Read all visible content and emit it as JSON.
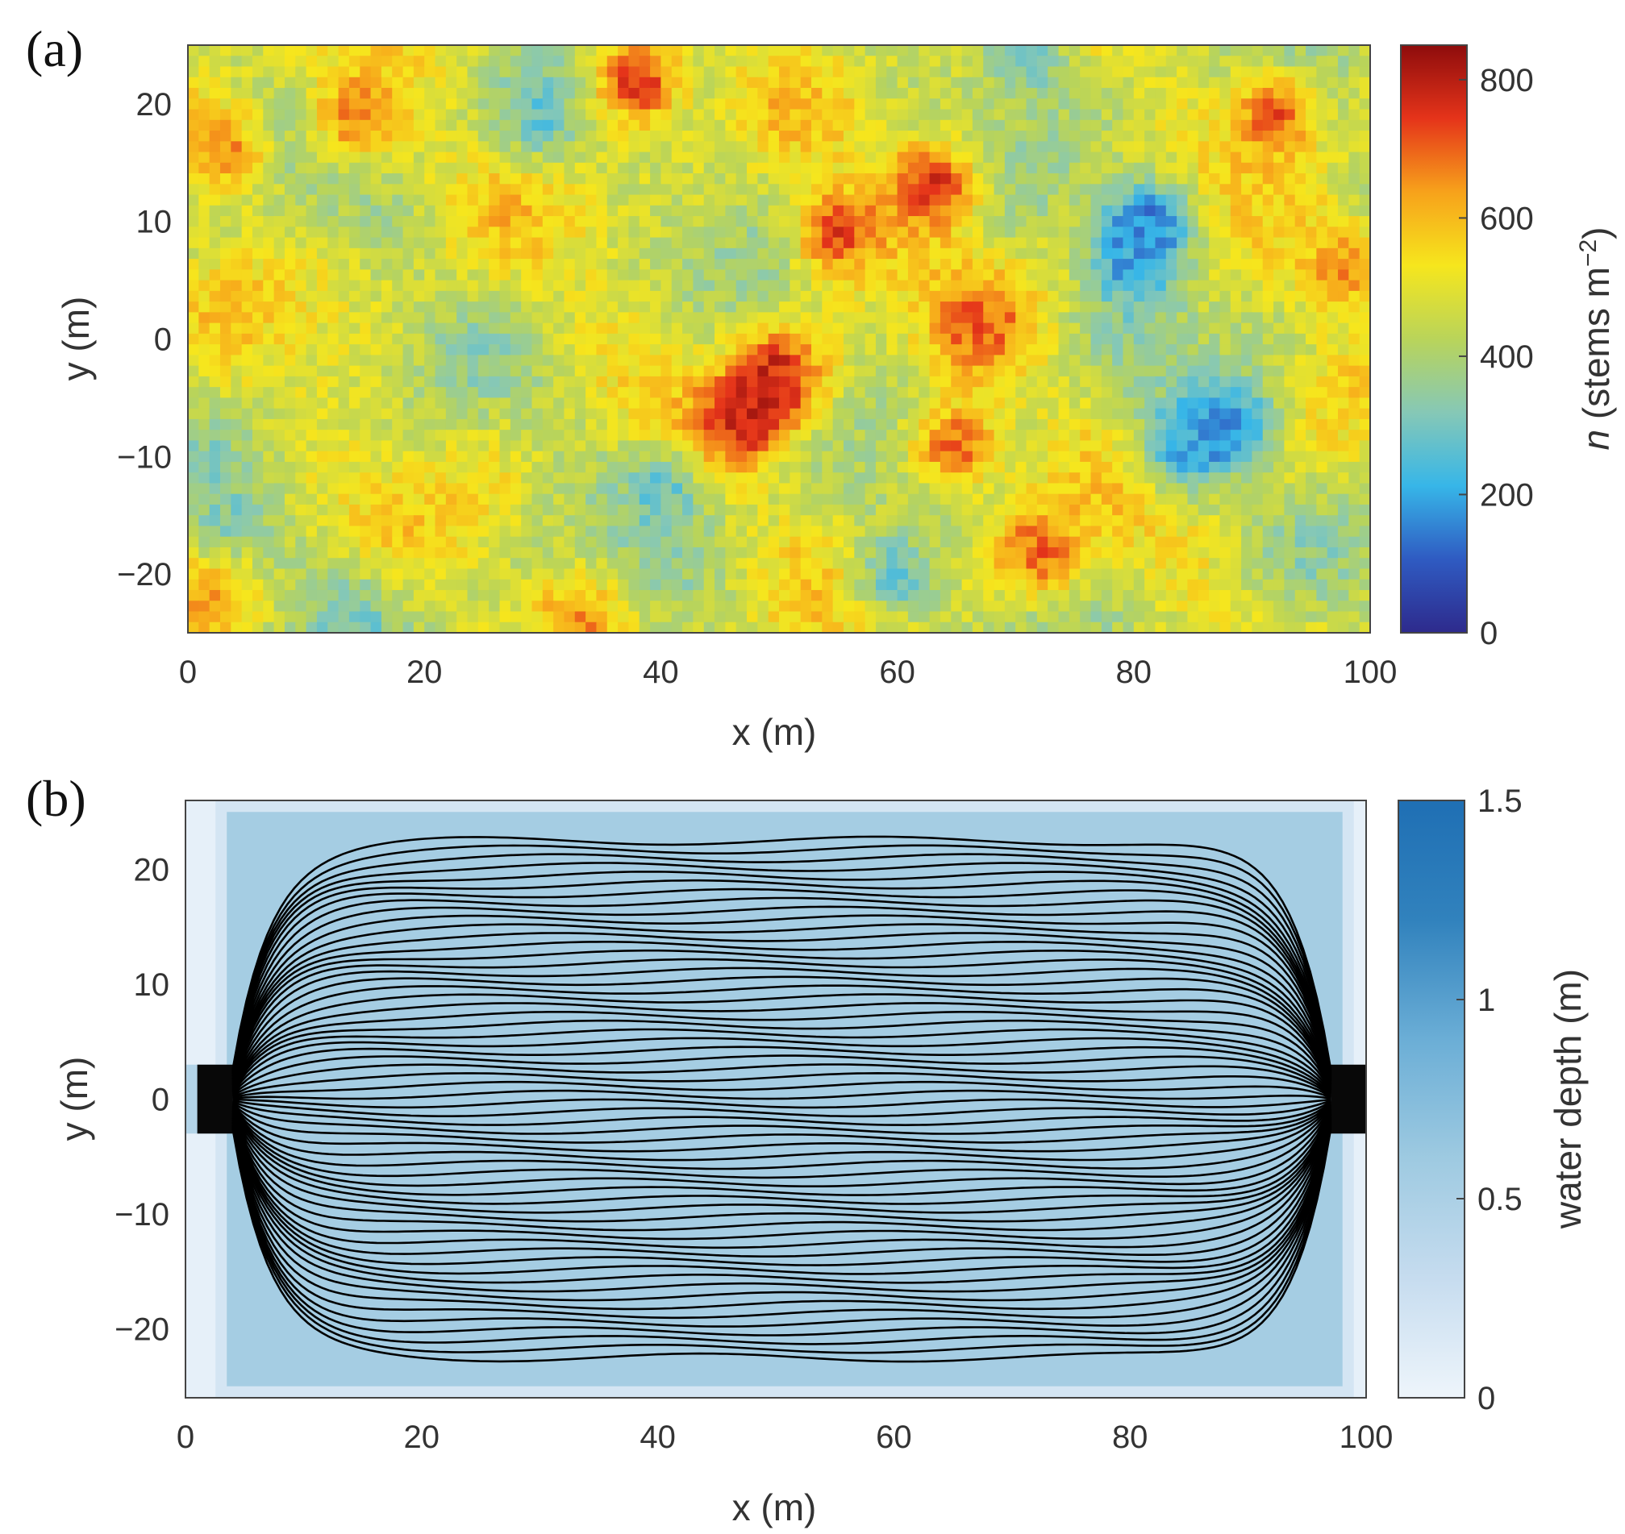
{
  "chart_data": [
    {
      "type": "heatmap",
      "panel_label": "(a)",
      "description_values": "vegetation stem density field n over the domain",
      "xlabel": "x (m)",
      "ylabel": "y (m)",
      "xlim": [
        0,
        100
      ],
      "ylim": [
        -25,
        25
      ],
      "xticks": [
        0,
        20,
        40,
        60,
        80,
        100
      ],
      "yticks": [
        20,
        10,
        0,
        -10,
        -20
      ],
      "xtick_labels": [
        "0",
        "20",
        "40",
        "60",
        "80",
        "100"
      ],
      "ytick_labels": [
        "20",
        "10",
        "0",
        "−10",
        "−20"
      ],
      "colorbar": {
        "label_italic": "n",
        "label_text": " (stems m",
        "label_sup": "−2",
        "label_close": ")",
        "range": [
          0,
          850
        ],
        "ticks": [
          0,
          200,
          400,
          600,
          800
        ],
        "tick_labels": [
          "0",
          "200",
          "400",
          "600",
          "800"
        ],
        "colormap": [
          "#2e2a8c",
          "#2f5bc2",
          "#37b6e8",
          "#86c8b6",
          "#b9d45a",
          "#f6e61d",
          "#f7a21b",
          "#e5341a",
          "#8e0c0c"
        ]
      },
      "hotspots": [
        {
          "x": 38,
          "y": 22,
          "value": 760
        },
        {
          "x": 63,
          "y": 13,
          "value": 780
        },
        {
          "x": 55,
          "y": 9,
          "value": 740
        },
        {
          "x": 50,
          "y": -3,
          "value": 760
        },
        {
          "x": 47,
          "y": -7,
          "value": 790
        },
        {
          "x": 67,
          "y": 1,
          "value": 720
        },
        {
          "x": 65,
          "y": -9,
          "value": 700
        },
        {
          "x": 72,
          "y": -18,
          "value": 700
        },
        {
          "x": 92,
          "y": 19,
          "value": 720
        },
        {
          "x": 14,
          "y": 19,
          "value": 680
        },
        {
          "x": 3,
          "y": 16,
          "value": 660
        },
        {
          "x": 98,
          "y": 6,
          "value": 660
        },
        {
          "x": 2,
          "y": -21,
          "value": 640
        },
        {
          "x": 33,
          "y": -24,
          "value": 660
        },
        {
          "x": 81,
          "y": 10,
          "value": 150
        },
        {
          "x": 80,
          "y": 6,
          "value": 220
        },
        {
          "x": 88,
          "y": -7,
          "value": 180
        },
        {
          "x": 84,
          "y": -9,
          "value": 220
        },
        {
          "x": 30,
          "y": 19,
          "value": 280
        },
        {
          "x": 40,
          "y": -13,
          "value": 280
        },
        {
          "x": 60,
          "y": -20,
          "value": 290
        },
        {
          "x": 3,
          "y": -16,
          "value": 300
        },
        {
          "x": 14,
          "y": -24,
          "value": 300
        },
        {
          "x": 71,
          "y": 24,
          "value": 280
        }
      ]
    },
    {
      "type": "heatmap",
      "panel_label": "(b)",
      "xlabel": "x (m)",
      "ylabel": "y (m)",
      "xlim": [
        0,
        100
      ],
      "ylim": [
        -26,
        26
      ],
      "xticks": [
        0,
        20,
        40,
        60,
        80,
        100
      ],
      "yticks": [
        20,
        10,
        0,
        -10,
        -20
      ],
      "xtick_labels": [
        "0",
        "20",
        "40",
        "60",
        "80",
        "100"
      ],
      "ytick_labels": [
        "20",
        "10",
        "0",
        "−10",
        "−20"
      ],
      "colorbar": {
        "label": "water depth (m)",
        "range": [
          0,
          1.5
        ],
        "ticks": [
          0,
          0.5,
          1,
          1.5
        ],
        "tick_labels": [
          "0",
          "0.5",
          "1",
          "1.5"
        ],
        "colormap": [
          "#eef5fb",
          "#c6dcef",
          "#9ecae1",
          "#6baed6",
          "#3182bd",
          "#1f6fb4"
        ]
      },
      "basin": {
        "x": [
          3.5,
          98
        ],
        "y": [
          -25,
          25
        ],
        "depth": 0.55
      },
      "inlet": {
        "x": [
          1,
          4
        ],
        "y": [
          -3,
          3
        ]
      },
      "outlet": {
        "x": [
          97,
          100
        ],
        "y": [
          -3,
          3
        ]
      },
      "streamlines": {
        "count": 60,
        "y_extent": [
          -22.5,
          22.5
        ],
        "color": "#000000"
      }
    }
  ]
}
